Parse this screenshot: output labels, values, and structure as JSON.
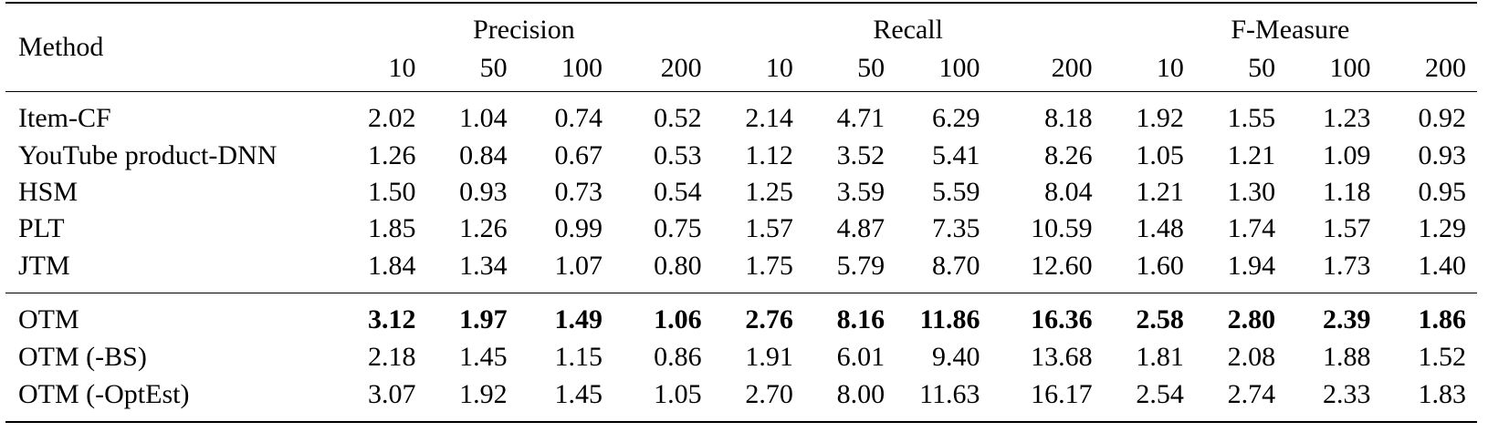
{
  "table": {
    "method_header": "Method",
    "groups": [
      "Precision",
      "Recall",
      "F-Measure"
    ],
    "subheaders": [
      "10",
      "50",
      "100",
      "200",
      "10",
      "50",
      "100",
      "200",
      "10",
      "50",
      "100",
      "200"
    ],
    "block1": [
      {
        "method": "Item-CF",
        "values": [
          "2.02",
          "1.04",
          "0.74",
          "0.52",
          "2.14",
          "4.71",
          "6.29",
          "8.18",
          "1.92",
          "1.55",
          "1.23",
          "0.92"
        ]
      },
      {
        "method": "YouTube product-DNN",
        "values": [
          "1.26",
          "0.84",
          "0.67",
          "0.53",
          "1.12",
          "3.52",
          "5.41",
          "8.26",
          "1.05",
          "1.21",
          "1.09",
          "0.93"
        ]
      },
      {
        "method": "HSM",
        "values": [
          "1.50",
          "0.93",
          "0.73",
          "0.54",
          "1.25",
          "3.59",
          "5.59",
          "8.04",
          "1.21",
          "1.30",
          "1.18",
          "0.95"
        ]
      },
      {
        "method": "PLT",
        "values": [
          "1.85",
          "1.26",
          "0.99",
          "0.75",
          "1.57",
          "4.87",
          "7.35",
          "10.59",
          "1.48",
          "1.74",
          "1.57",
          "1.29"
        ]
      },
      {
        "method": "JTM",
        "values": [
          "1.84",
          "1.34",
          "1.07",
          "0.80",
          "1.75",
          "5.79",
          "8.70",
          "12.60",
          "1.60",
          "1.94",
          "1.73",
          "1.40"
        ]
      }
    ],
    "block2": [
      {
        "method": "OTM",
        "values": [
          "3.12",
          "1.97",
          "1.49",
          "1.06",
          "2.76",
          "8.16",
          "11.86",
          "16.36",
          "2.58",
          "2.80",
          "2.39",
          "1.86"
        ]
      },
      {
        "method": "OTM (-BS)",
        "values": [
          "2.18",
          "1.45",
          "1.15",
          "0.86",
          "1.91",
          "6.01",
          "9.40",
          "13.68",
          "1.81",
          "2.08",
          "1.88",
          "1.52"
        ]
      },
      {
        "method": "OTM (-OptEst)",
        "values": [
          "3.07",
          "1.92",
          "1.45",
          "1.05",
          "2.70",
          "8.00",
          "11.63",
          "16.17",
          "2.54",
          "2.74",
          "2.33",
          "1.83"
        ]
      }
    ]
  }
}
